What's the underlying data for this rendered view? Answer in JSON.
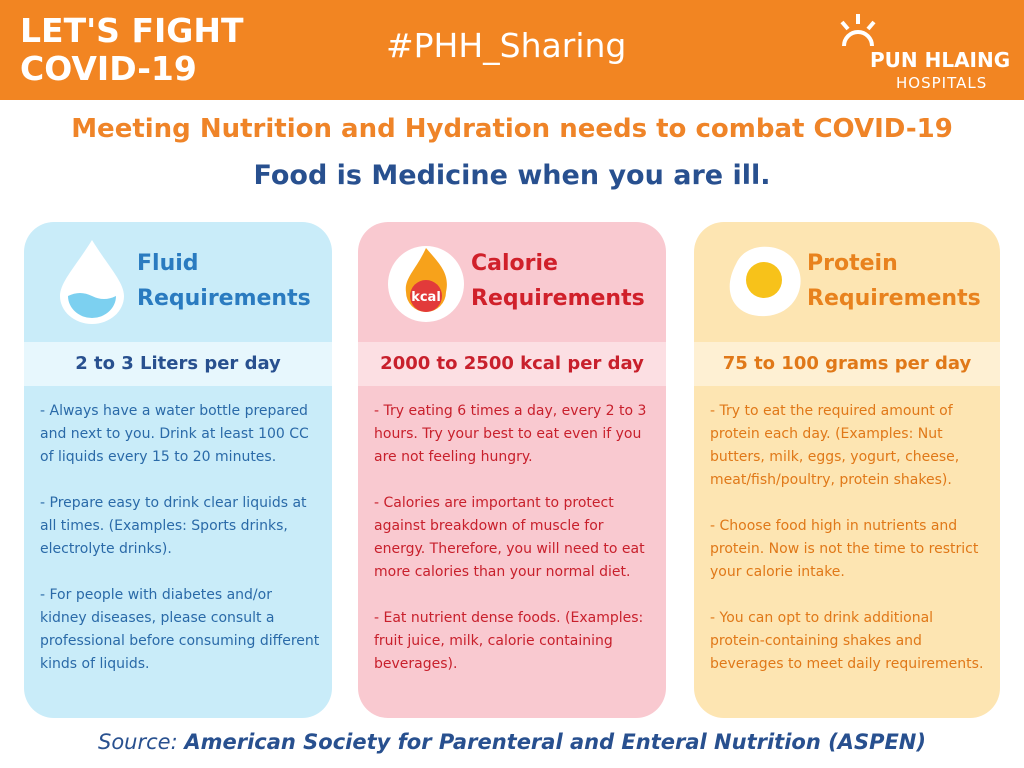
{
  "header": {
    "title_lines": [
      "LET'S FIGHT",
      "COVID-19"
    ],
    "hashtag": "#PHH_Sharing",
    "logo_name": "PUN HLAING",
    "logo_sub": "HOSPITALS"
  },
  "headline": "Meeting Nutrition and Hydration needs to combat COVID-19",
  "subheadline": "Food is Medicine when you are ill.",
  "cards": [
    {
      "title_lines": [
        "Fluid",
        "Requirements"
      ],
      "amount": "2 to 3 Liters per day",
      "paragraphs": [
        "- Always have a water bottle prepared and next to you. Drink at least 100 CC of liquids every 15 to 20 minutes.",
        "- Prepare easy to drink clear liquids at all times. (Examples: Sports drinks, electrolyte drinks).",
        "- For people with diabetes and/or kidney diseases, please consult a professional before consuming different kinds of liquids."
      ]
    },
    {
      "title_lines": [
        "Calorie",
        "Requirements"
      ],
      "icon_label": "kcal",
      "amount": "2000 to 2500 kcal per day",
      "paragraphs": [
        "- Try eating 6 times a day, every 2 to 3 hours. Try your best to eat even if you are not feeling hungry.",
        "- Calories are important to protect against breakdown of muscle for energy. Therefore, you will need to eat more calories than your normal diet.",
        "- Eat nutrient dense foods. (Examples: fruit juice, milk, calorie containing beverages)."
      ]
    },
    {
      "title_lines": [
        "Protein",
        "Requirements"
      ],
      "amount": "75 to 100 grams per day",
      "paragraphs": [
        "- Try to eat the required amount of protein each day. (Examples: Nut butters, milk, eggs, yogurt, cheese, meat/fish/poultry, protein shakes).",
        "- Choose food high in nutrients and protein. Now is not the time to restrict your calorie intake.",
        "- You can opt to drink additional protein-containing shakes and beverages to meet daily requirements."
      ]
    }
  ],
  "source": {
    "prefix": "Source:",
    "text": "American Society for Parenteral and Enteral Nutrition (ASPEN)"
  }
}
